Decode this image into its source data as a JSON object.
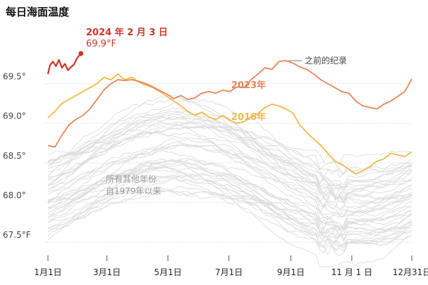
{
  "title": "每日海面温度",
  "colors": {
    "y2024": "#c9372c",
    "y2023": "#e8855a",
    "y2016": "#f0b94a",
    "other": "#d9d9d9",
    "grid": "#d0d0d0"
  },
  "chart_data": {
    "type": "line",
    "title": "每日海面温度",
    "xlabel": "",
    "ylabel": "",
    "x_ticks": [
      "1月1日",
      "3月1日",
      "5月1日",
      "7月1日",
      "9月1日",
      "11 月 1 日",
      "12月31日"
    ],
    "x_tick_days": [
      1,
      60,
      121,
      182,
      244,
      305,
      365
    ],
    "y_ticks": [
      "69.5°",
      "69.0°",
      "68.5°",
      "68.0°",
      "67.5°F"
    ],
    "y_tick_values": [
      69.5,
      69.0,
      68.5,
      68.0,
      67.5
    ],
    "ylim": [
      67.35,
      70.2
    ],
    "xlim": [
      1,
      365
    ],
    "grid": "horizontal",
    "series": [
      {
        "name": "2024年2月3日",
        "key": "y2024",
        "annotation": "2024 年 2 月 3 日",
        "value_label": "69.9°F",
        "x": [
          1,
          3,
          6,
          9,
          12,
          15,
          18,
          21,
          24,
          27,
          30,
          34
        ],
        "values": [
          69.62,
          69.73,
          69.78,
          69.72,
          69.8,
          69.7,
          69.75,
          69.67,
          69.71,
          69.74,
          69.82,
          69.88
        ]
      },
      {
        "name": "2023年",
        "key": "y2023",
        "annotation": "之前的纪录",
        "x": [
          1,
          8,
          15,
          22,
          29,
          36,
          43,
          50,
          57,
          64,
          71,
          78,
          85,
          92,
          99,
          106,
          113,
          120,
          127,
          134,
          141,
          148,
          155,
          162,
          169,
          176,
          183,
          190,
          197,
          204,
          211,
          218,
          225,
          232,
          239,
          246,
          253,
          260,
          267,
          274,
          281,
          288,
          295,
          302,
          309,
          316,
          323,
          330,
          337,
          344,
          351,
          358,
          365
        ],
        "values": [
          68.72,
          68.7,
          68.85,
          68.98,
          69.05,
          69.1,
          69.18,
          69.3,
          69.42,
          69.5,
          69.55,
          69.54,
          69.55,
          69.53,
          69.5,
          69.46,
          69.41,
          69.37,
          69.31,
          69.35,
          69.3,
          69.32,
          69.38,
          69.4,
          69.38,
          69.42,
          69.4,
          69.46,
          69.45,
          69.55,
          69.62,
          69.7,
          69.68,
          69.78,
          69.79,
          69.76,
          69.71,
          69.68,
          69.62,
          69.55,
          69.5,
          69.45,
          69.4,
          69.38,
          69.28,
          69.22,
          69.2,
          69.18,
          69.24,
          69.28,
          69.34,
          69.4,
          69.56
        ]
      },
      {
        "name": "2016年",
        "key": "y2016",
        "x": [
          1,
          8,
          15,
          22,
          29,
          36,
          43,
          50,
          57,
          64,
          71,
          78,
          85,
          92,
          99,
          106,
          113,
          120,
          127,
          134,
          141,
          148,
          155,
          162,
          169,
          176,
          183,
          190,
          197,
          204,
          211,
          218,
          225,
          232,
          239,
          246,
          253,
          260,
          267,
          274,
          281,
          288,
          295,
          302,
          309,
          316,
          323,
          330,
          337,
          344,
          351,
          358,
          365
        ],
        "values": [
          69.07,
          69.15,
          69.25,
          69.3,
          69.35,
          69.4,
          69.45,
          69.5,
          69.58,
          69.55,
          69.62,
          69.55,
          69.58,
          69.52,
          69.48,
          69.45,
          69.4,
          69.34,
          69.28,
          69.22,
          69.15,
          69.1,
          69.14,
          69.08,
          69.05,
          69.1,
          69.04,
          69.0,
          69.02,
          69.08,
          69.12,
          69.2,
          69.24,
          69.22,
          69.18,
          69.13,
          68.98,
          68.88,
          68.8,
          68.72,
          68.62,
          68.52,
          68.48,
          68.42,
          68.36,
          68.4,
          68.45,
          68.52,
          68.55,
          68.62,
          68.6,
          68.58,
          68.64
        ]
      }
    ],
    "background": {
      "label_line1": "所有其他年份",
      "label_line2": "自1979年以来",
      "description_count": 43
    }
  }
}
